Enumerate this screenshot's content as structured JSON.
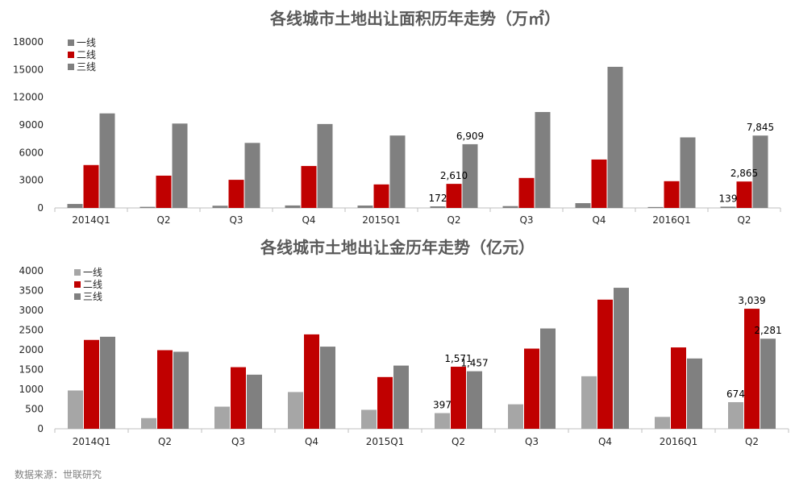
{
  "source": "数据来源：世联研究",
  "chart_data": [
    {
      "type": "bar",
      "title": "各线城市土地出让面积历年走势（万㎡）",
      "categories": [
        "2014Q1",
        "Q2",
        "Q3",
        "Q4",
        "2015Q1",
        "Q2",
        "Q3",
        "Q4",
        "2016Q1",
        "Q2"
      ],
      "ylim": [
        0,
        18000
      ],
      "yticks": [
        0,
        3000,
        6000,
        9000,
        12000,
        15000,
        18000
      ],
      "legend_position": "top-left",
      "grid": false,
      "series": [
        {
          "name": "一线",
          "color": "#7f7f7f",
          "values": [
            430,
            120,
            240,
            270,
            260,
            172,
            200,
            520,
            100,
            139
          ]
        },
        {
          "name": "二线",
          "color": "#c00000",
          "values": [
            4650,
            3500,
            3050,
            4550,
            2550,
            2610,
            3250,
            5250,
            2900,
            2865
          ]
        },
        {
          "name": "三线",
          "color": "#808080",
          "values": [
            10250,
            9150,
            7050,
            9100,
            7850,
            6909,
            10400,
            15300,
            7650,
            7845
          ]
        }
      ],
      "data_labels": [
        {
          "series": 0,
          "index": 5,
          "text": "172"
        },
        {
          "series": 1,
          "index": 5,
          "text": "2,610"
        },
        {
          "series": 2,
          "index": 5,
          "text": "6,909"
        },
        {
          "series": 0,
          "index": 9,
          "text": "139"
        },
        {
          "series": 1,
          "index": 9,
          "text": "2,865"
        },
        {
          "series": 2,
          "index": 9,
          "text": "7,845"
        }
      ]
    },
    {
      "type": "bar",
      "title": "各线城市土地出让金历年走势（亿元）",
      "categories": [
        "2014Q1",
        "Q2",
        "Q3",
        "Q4",
        "2015Q1",
        "Q2",
        "Q3",
        "Q4",
        "2016Q1",
        "Q2"
      ],
      "ylim": [
        0,
        4000
      ],
      "yticks": [
        0,
        500,
        1000,
        1500,
        2000,
        2500,
        3000,
        3500,
        4000
      ],
      "legend_position": "top-left",
      "grid": false,
      "series": [
        {
          "name": "一线",
          "color": "#a6a6a6",
          "values": [
            970,
            270,
            560,
            930,
            480,
            397,
            620,
            1330,
            300,
            674
          ]
        },
        {
          "name": "二线",
          "color": "#c00000",
          "values": [
            2250,
            1990,
            1560,
            2390,
            1310,
            1571,
            2030,
            3270,
            2060,
            3039
          ]
        },
        {
          "name": "三线",
          "color": "#808080",
          "values": [
            2330,
            1950,
            1370,
            2080,
            1600,
            1457,
            2540,
            3570,
            1780,
            2281
          ]
        }
      ],
      "data_labels": [
        {
          "series": 0,
          "index": 5,
          "text": "397"
        },
        {
          "series": 1,
          "index": 5,
          "text": "1,571"
        },
        {
          "series": 2,
          "index": 5,
          "text": "1,457"
        },
        {
          "series": 0,
          "index": 9,
          "text": "674"
        },
        {
          "series": 1,
          "index": 9,
          "text": "3,039"
        },
        {
          "series": 2,
          "index": 9,
          "text": "2,281"
        }
      ]
    }
  ]
}
